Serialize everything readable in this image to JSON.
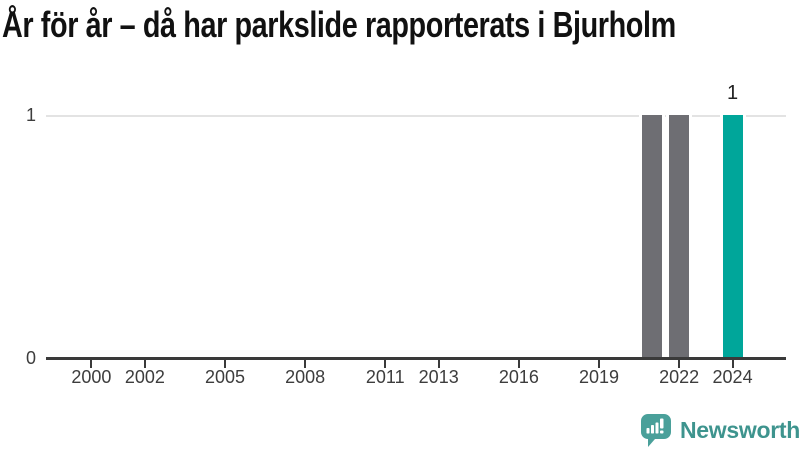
{
  "title": "År för år – då har parkslide rapporterats i Bjurholm",
  "branding": {
    "logo_text": "Newsworthy",
    "logo_icon": "newsworthy-chart-bubble-icon",
    "logo_text_color": "#3E948E",
    "logo_icon_color": "#4AA09A"
  },
  "colors": {
    "bar_default": "#6E6E73",
    "bar_highlight": "#00A69A",
    "axis": "#3A3A3A",
    "gridline": "#E3E3E3"
  },
  "chart_data": {
    "type": "bar",
    "title": "År för år – då har parkslide rapporterats i Bjurholm",
    "x": [
      2021,
      2022,
      2024
    ],
    "values": [
      1,
      1,
      1
    ],
    "bar_colors": [
      "#6E6E73",
      "#6E6E73",
      "#00A69A"
    ],
    "highlight_x": 2024,
    "xticks": [
      2000,
      2002,
      2005,
      2008,
      2011,
      2013,
      2016,
      2019,
      2022,
      2024
    ],
    "yticks": [
      0,
      1
    ],
    "xlim": [
      1998.3,
      2026.0
    ],
    "ylim": [
      0,
      1
    ],
    "xlabel": "",
    "ylabel": "",
    "grid": "horizontal",
    "legend": "none",
    "data_labels": [
      {
        "x": 2024,
        "text": "1"
      }
    ]
  }
}
